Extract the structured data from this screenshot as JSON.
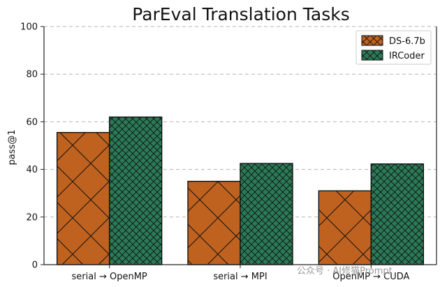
{
  "chart_data": {
    "type": "bar",
    "title": "ParEval Translation Tasks",
    "xlabel": "",
    "ylabel": "pass@1",
    "ylim": [
      0,
      100
    ],
    "yticks": [
      0,
      20,
      40,
      60,
      80,
      100
    ],
    "grid": true,
    "legend_position": "top-right",
    "categories": [
      "serial → OpenMP",
      "serial → MPI",
      "OpenMP → CUDA"
    ],
    "series": [
      {
        "name": "DS-6.7b",
        "values": [
          55.5,
          35.0,
          31.0
        ],
        "color": "#c0621f",
        "hatch": "diagonal-cross"
      },
      {
        "name": "IRCoder",
        "values": [
          62.0,
          42.5,
          42.3
        ],
        "color": "#2a7a57",
        "hatch": "fine-cross"
      }
    ]
  },
  "watermark": "公众号 · AI修猫Prompt"
}
